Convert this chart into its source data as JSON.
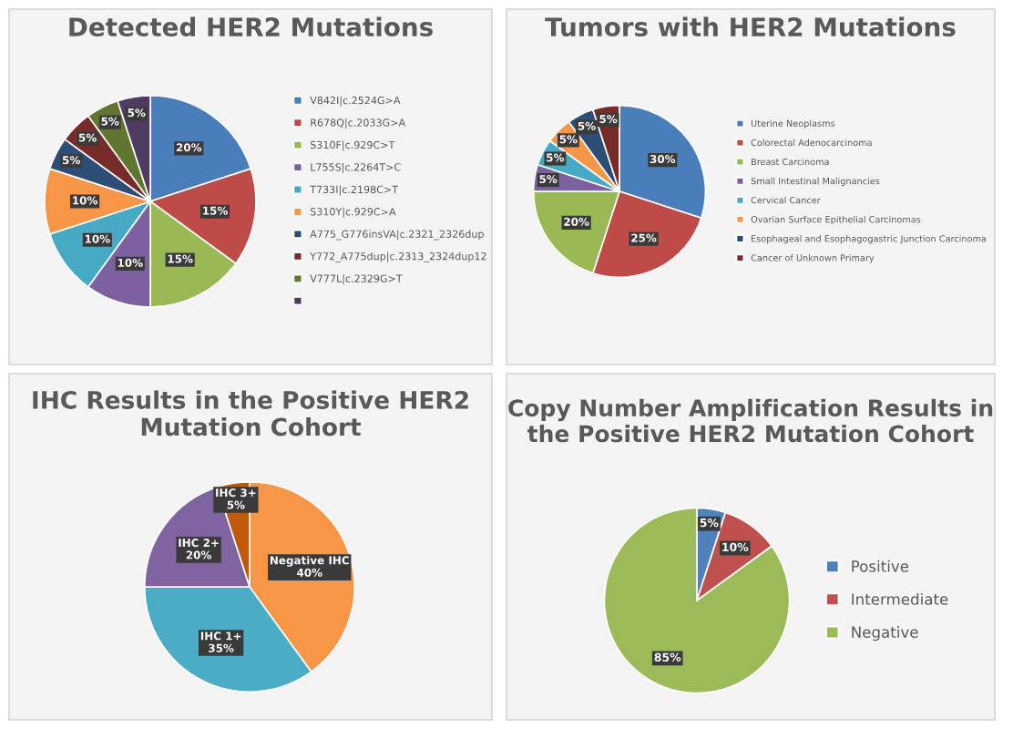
{
  "chart_data": [
    {
      "type": "pie",
      "title": "Detected HER2 Mutations",
      "legend": "right",
      "categories": [
        "V842I|c.2524G>A",
        "R678Q|c.2033G>A",
        "S310F|c.929C>T",
        "L755S|c.2264T>C",
        "T733I|c.2198C>T",
        "S310Y|c.929C>A",
        "A775_G776insVA|c.2321_2326dup",
        "Y772_A775dup|c.2313_2324dup12",
        "V777L|c.2329G>T",
        null
      ],
      "values": [
        20,
        15,
        15,
        10,
        10,
        10,
        5,
        5,
        5,
        5
      ],
      "value_labels": [
        "20%",
        "15%",
        "15%",
        "10%",
        "10%",
        "10%",
        "5%",
        "5%",
        "5%",
        "5%"
      ],
      "colors": [
        "#4a7ebb",
        "#be4b48",
        "#98b954",
        "#7d60a0",
        "#46aac5",
        "#f79646",
        "#2c4d75",
        "#772c2a",
        "#5f7530",
        "#4d3b62"
      ]
    },
    {
      "type": "pie",
      "title": "Tumors with HER2 Mutations",
      "legend": "right",
      "categories": [
        "Uterine Neoplasms",
        "Colorectal Adenocarcinoma",
        "Breast Carcinoma",
        "Small Intestinal Malignancies",
        "Cervical Cancer",
        "Ovarian Surface Epithelial Carcinomas",
        "Esophageal and Esophagogastric Junction Carcinoma",
        "Cancer of Unknown Primary"
      ],
      "values": [
        30,
        25,
        20,
        5,
        5,
        5,
        5,
        5
      ],
      "value_labels": [
        "30%",
        "25%",
        "20%",
        "5%",
        "5%",
        "5%",
        "5%",
        "5%"
      ],
      "colors": [
        "#4a7ebb",
        "#be4b48",
        "#98b954",
        "#7d60a0",
        "#46aac5",
        "#f79646",
        "#2c4d75",
        "#772c2a"
      ]
    },
    {
      "type": "pie",
      "title": "IHC Results in the Positive HER2 Mutation Cohort",
      "legend": false,
      "categories": [
        "Negative IHC",
        "IHC 1+",
        "IHC 2+",
        "IHC 3+"
      ],
      "values": [
        40,
        35,
        20,
        5
      ],
      "value_labels": [
        "40%",
        "35%",
        "20%",
        "5%"
      ],
      "colors": [
        "#f79646",
        "#4bacc6",
        "#8064a2",
        "#c0590a"
      ]
    },
    {
      "type": "pie",
      "title": "Copy Number Amplification Results in the Positive HER2 Mutation Cohort",
      "legend": "right",
      "categories": [
        "Positive",
        "Intermediate",
        "Negative"
      ],
      "values": [
        5,
        10,
        85
      ],
      "value_labels": [
        "5%",
        "10%",
        "85%"
      ],
      "colors": [
        "#4f81bd",
        "#c0504d",
        "#9bbb59"
      ]
    }
  ]
}
